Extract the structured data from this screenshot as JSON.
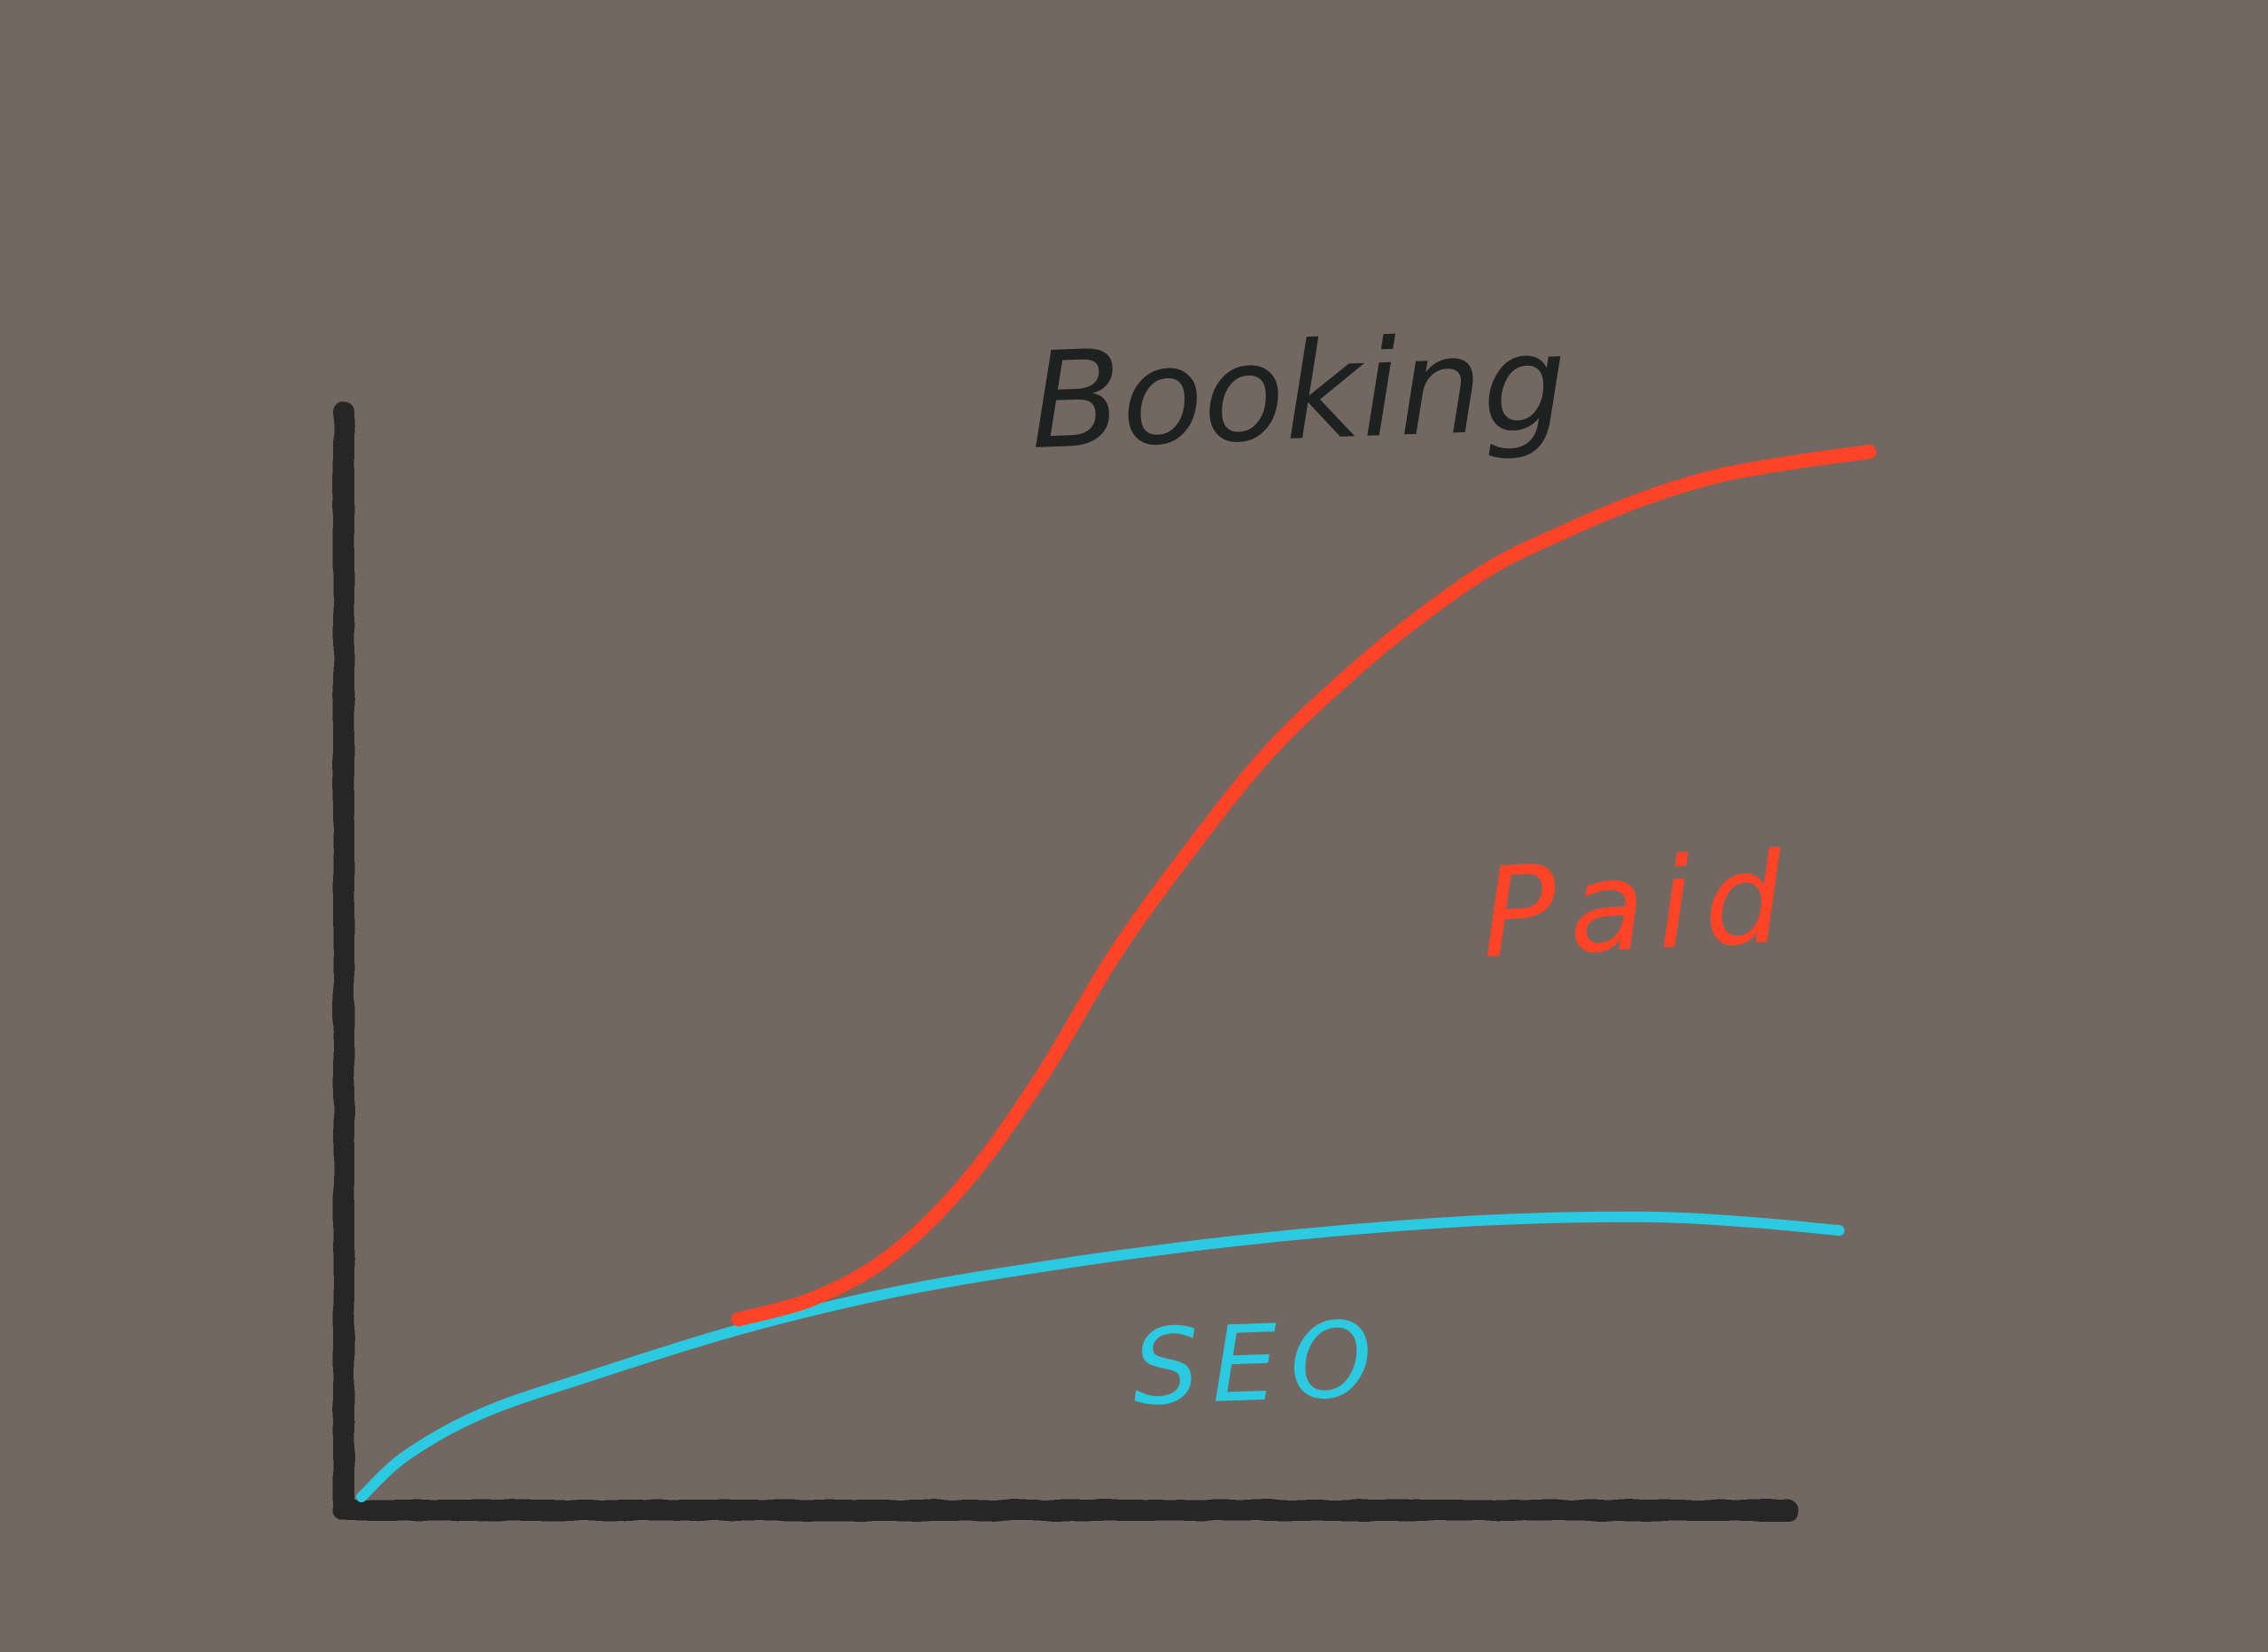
{
  "chart_data": {
    "type": "line",
    "title": "Booking",
    "xlabel": "",
    "ylabel": "",
    "xlim": [
      0,
      100
    ],
    "ylim": [
      0,
      100
    ],
    "grid": false,
    "legend": "none",
    "series": [
      {
        "name": "Paid",
        "color": "#fe4426",
        "x": [
          25,
          30,
          35,
          40,
          45,
          50,
          55,
          60,
          65,
          70,
          75,
          80,
          85,
          90,
          95,
          100
        ],
        "y": [
          17,
          19,
          23,
          30,
          40,
          52,
          62,
          71,
          78,
          84,
          89,
          92.5,
          95.5,
          97.7,
          99,
          100
        ]
      },
      {
        "name": "SEO",
        "color": "#2bcae1",
        "x": [
          0,
          3,
          8,
          15,
          25,
          35,
          45,
          55,
          65,
          75,
          85,
          92,
          98
        ],
        "y": [
          0,
          4,
          8,
          11.5,
          16,
          19.5,
          22,
          24,
          25.5,
          26.5,
          26.8,
          26.3,
          25.5
        ]
      }
    ],
    "colors": {
      "axis": "#262827",
      "title": "#1d211f",
      "background": "#736762"
    }
  }
}
